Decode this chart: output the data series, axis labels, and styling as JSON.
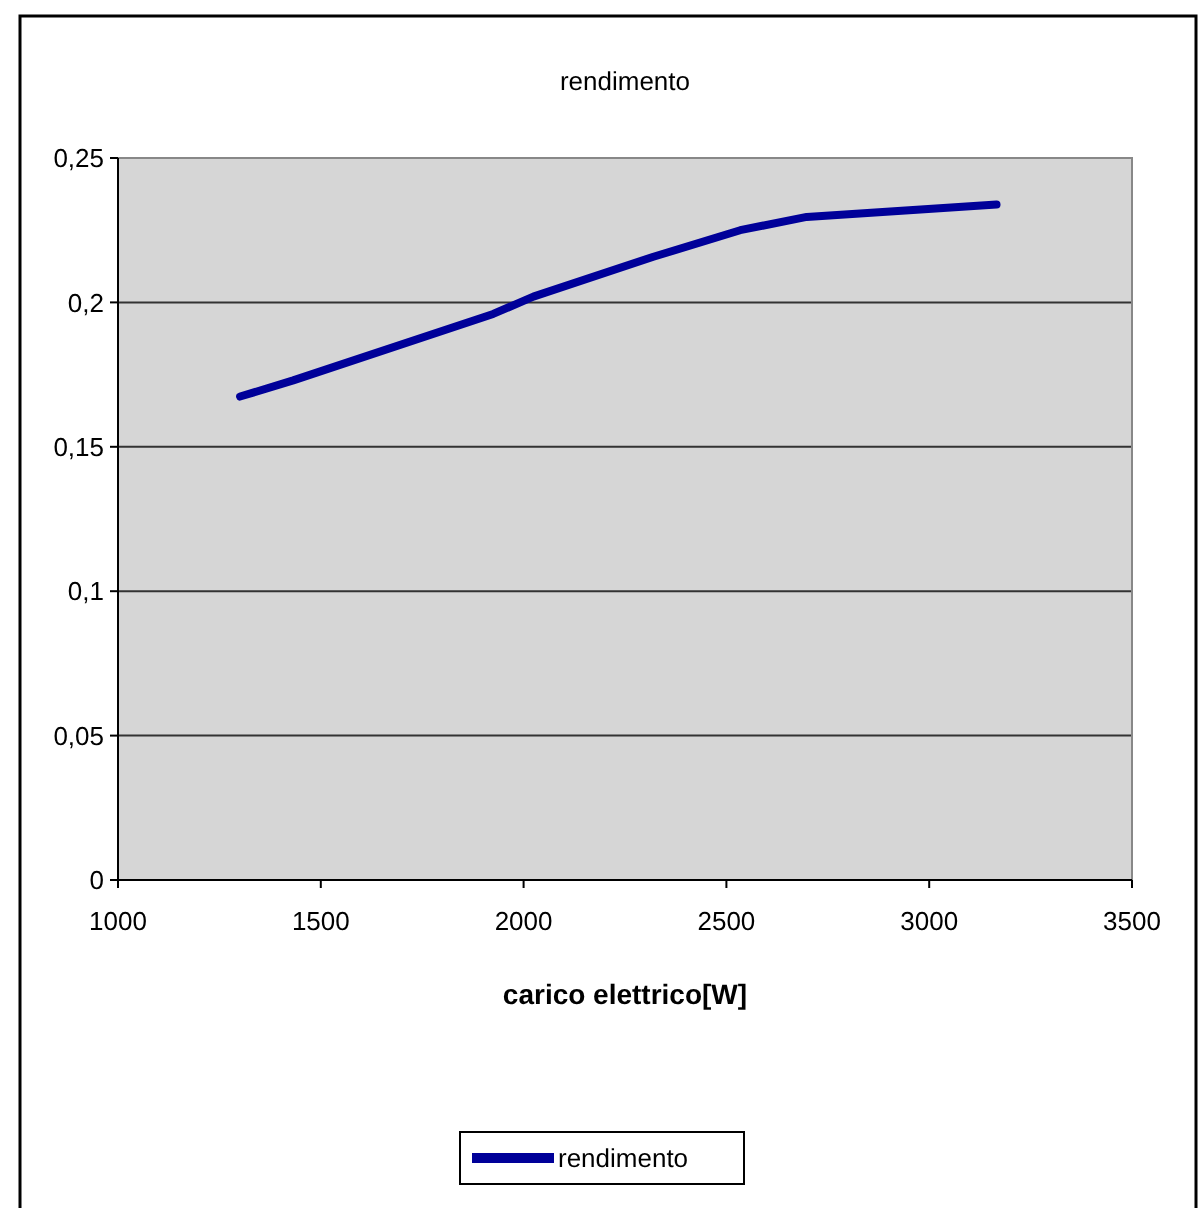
{
  "chart_data": {
    "type": "line",
    "title": "rendimento",
    "xlabel": "carico elettrico[W]",
    "x": [
      1301,
      1432,
      1925,
      2024,
      2320,
      2534,
      2698,
      3166
    ],
    "series": [
      {
        "name": "rendimento",
        "color": "#000099",
        "values": [
          0.1674,
          0.173,
          0.196,
          0.202,
          0.2158,
          0.225,
          0.2296,
          0.2339
        ]
      }
    ],
    "xlim": [
      1000,
      3500
    ],
    "xticks": [
      1000,
      1500,
      2000,
      2500,
      3000,
      3500
    ],
    "ylim": [
      0,
      0.25
    ],
    "yticks": [
      {
        "value": 0,
        "label": "0"
      },
      {
        "value": 0.05,
        "label": "0,05"
      },
      {
        "value": 0.1,
        "label": "0,1"
      },
      {
        "value": 0.15,
        "label": "0,15"
      },
      {
        "value": 0.2,
        "label": "0,2"
      },
      {
        "value": 0.25,
        "label": "0,25"
      }
    ],
    "grid": "y",
    "legend": "bottom",
    "marker": "none",
    "line_style": "solid"
  }
}
